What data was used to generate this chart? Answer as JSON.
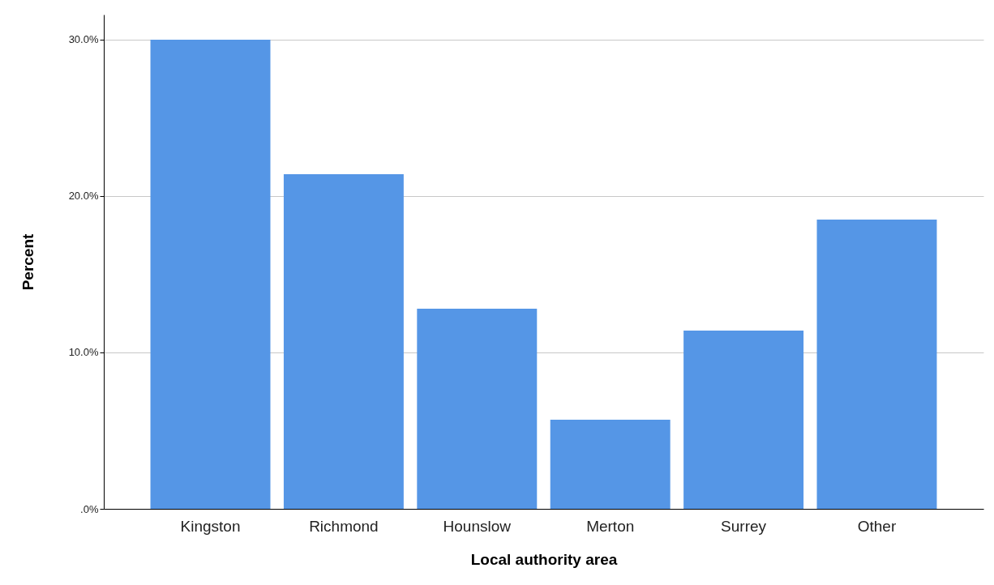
{
  "chart_data": {
    "type": "bar",
    "xlabel": "Local authority area",
    "ylabel": "Percent",
    "categories": [
      "Kingston",
      "Richmond",
      "Hounslow",
      "Merton",
      "Surrey",
      "Other"
    ],
    "values": [
      30.0,
      21.4,
      12.8,
      5.7,
      11.4,
      18.5
    ],
    "color": "#5596e6",
    "ylim": [
      0,
      31.6
    ],
    "yticks": [
      {
        "value": 0,
        "label": ".0%"
      },
      {
        "value": 10,
        "label": "10.0%"
      },
      {
        "value": 20,
        "label": "20.0%"
      },
      {
        "value": 30,
        "label": "30.0%"
      }
    ],
    "grid": "y"
  }
}
